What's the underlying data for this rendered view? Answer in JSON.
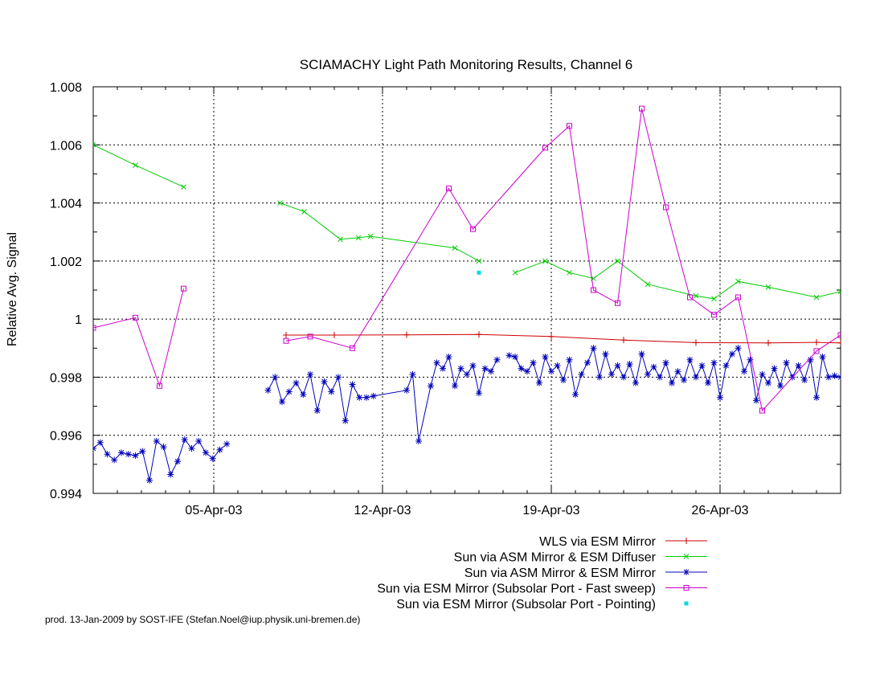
{
  "chart_data": {
    "type": "line",
    "title": "SCIAMACHY Light Path Monitoring Results, Channel 6",
    "xlabel": "",
    "ylabel": "Relative Avg. Signal",
    "xlim": [
      "2003-03-31",
      "2003-05-01"
    ],
    "ylim": [
      0.994,
      1.008
    ],
    "x_ticks": [
      {
        "date": "2003-04-05",
        "label": "05-Apr-03"
      },
      {
        "date": "2003-04-12",
        "label": "12-Apr-03"
      },
      {
        "date": "2003-04-19",
        "label": "19-Apr-03"
      },
      {
        "date": "2003-04-26",
        "label": "26-Apr-03"
      }
    ],
    "y_ticks": [
      {
        "value": 0.994,
        "label": "0.994"
      },
      {
        "value": 0.996,
        "label": "0.996"
      },
      {
        "value": 0.998,
        "label": "0.998"
      },
      {
        "value": 1.0,
        "label": "1"
      },
      {
        "value": 1.002,
        "label": "1.002"
      },
      {
        "value": 1.004,
        "label": "1.004"
      },
      {
        "value": 1.006,
        "label": "1.006"
      },
      {
        "value": 1.008,
        "label": "1.008"
      }
    ],
    "grid": true,
    "legend_position": "bottom-right",
    "series": [
      {
        "name": "WLS via ESM Mirror",
        "color": "#cc0000",
        "marker": "plus",
        "line": true,
        "points": [
          [
            "2003-04-08T00:00",
            0.99945
          ],
          [
            "2003-04-10T00:00",
            0.99945
          ],
          [
            "2003-04-13T00:00",
            0.99946
          ],
          [
            "2003-04-16T00:00",
            0.99947
          ],
          [
            "2003-04-19T00:00",
            0.9994
          ],
          [
            "2003-04-22T00:00",
            0.99928
          ],
          [
            "2003-04-25T00:00",
            0.99919
          ],
          [
            "2003-04-28T00:00",
            0.99918
          ],
          [
            "2003-04-30T00:00",
            0.9992
          ],
          [
            "2003-05-01T00:00",
            0.99918
          ]
        ]
      },
      {
        "name": "Sun via ASM Mirror & ESM Diffuser",
        "color": "#00cc00",
        "marker": "cross",
        "line": true,
        "segments": [
          [
            [
              "2003-03-31T00:00",
              1.006
            ],
            [
              "2003-04-01T18:00",
              1.0053
            ],
            [
              "2003-04-03T18:00",
              1.00455
            ]
          ],
          [
            [
              "2003-04-07T18:00",
              1.004
            ],
            [
              "2003-04-08T18:00",
              1.0037
            ],
            [
              "2003-04-10T06:00",
              1.00275
            ],
            [
              "2003-04-11T00:00",
              1.0028
            ],
            [
              "2003-04-11T12:00",
              1.00285
            ],
            [
              "2003-04-15T00:00",
              1.00245
            ],
            [
              "2003-04-16T00:00",
              1.002
            ]
          ],
          [
            [
              "2003-04-17T12:00",
              1.0016
            ],
            [
              "2003-04-18T18:00",
              1.002
            ],
            [
              "2003-04-19T18:00",
              1.0016
            ],
            [
              "2003-04-20T18:00",
              1.0014
            ],
            [
              "2003-04-21T18:00",
              1.002
            ],
            [
              "2003-04-23T00:00",
              1.0012
            ],
            [
              "2003-04-25T00:00",
              1.0008
            ],
            [
              "2003-04-25T18:00",
              1.0007
            ],
            [
              "2003-04-26T18:00",
              1.0013
            ],
            [
              "2003-04-28T00:00",
              1.0011
            ],
            [
              "2003-04-30T00:00",
              1.00075
            ],
            [
              "2003-05-01T00:00",
              1.00095
            ]
          ]
        ]
      },
      {
        "name": "Sun via ASM Mirror & ESM Mirror",
        "color": "#0000bb",
        "marker": "star",
        "line": true,
        "segments": [
          [
            [
              "2003-03-31T00:00",
              0.99555
            ],
            [
              "2003-03-31T07:00",
              0.99575
            ],
            [
              "2003-03-31T14:00",
              0.99535
            ],
            [
              "2003-03-31T21:00",
              0.99515
            ],
            [
              "2003-04-01T04:00",
              0.9954
            ],
            [
              "2003-04-01T11:00",
              0.99535
            ],
            [
              "2003-04-01T18:00",
              0.9953
            ],
            [
              "2003-04-02T01:00",
              0.99545
            ],
            [
              "2003-04-02T08:00",
              0.99445
            ],
            [
              "2003-04-02T15:00",
              0.9958
            ],
            [
              "2003-04-02T22:00",
              0.9956
            ],
            [
              "2003-04-03T05:00",
              0.99465
            ],
            [
              "2003-04-03T12:00",
              0.9951
            ],
            [
              "2003-04-03T19:00",
              0.99585
            ],
            [
              "2003-04-04T02:00",
              0.99555
            ],
            [
              "2003-04-04T09:00",
              0.9958
            ],
            [
              "2003-04-04T16:00",
              0.9954
            ],
            [
              "2003-04-04T23:00",
              0.9952
            ],
            [
              "2003-04-05T06:00",
              0.9955
            ],
            [
              "2003-04-05T13:00",
              0.9957
            ]
          ],
          [
            [
              "2003-04-07T06:00",
              0.99755
            ],
            [
              "2003-04-07T13:00",
              0.998
            ],
            [
              "2003-04-07T20:00",
              0.99715
            ],
            [
              "2003-04-08T03:00",
              0.9975
            ],
            [
              "2003-04-08T10:00",
              0.9978
            ],
            [
              "2003-04-08T17:00",
              0.9974
            ],
            [
              "2003-04-09T00:00",
              0.9981
            ],
            [
              "2003-04-09T07:00",
              0.99685
            ],
            [
              "2003-04-09T14:00",
              0.99785
            ],
            [
              "2003-04-09T21:00",
              0.9975
            ],
            [
              "2003-04-10T04:00",
              0.998
            ],
            [
              "2003-04-10T11:00",
              0.9965
            ],
            [
              "2003-04-10T18:00",
              0.99775
            ],
            [
              "2003-04-11T01:00",
              0.9973
            ],
            [
              "2003-04-11T08:00",
              0.9973
            ],
            [
              "2003-04-11T15:00",
              0.99735
            ],
            [
              "2003-04-13T00:00",
              0.99755
            ],
            [
              "2003-04-13T06:00",
              0.9981
            ],
            [
              "2003-04-13T12:00",
              0.9958
            ],
            [
              "2003-04-14T00:00",
              0.9977
            ],
            [
              "2003-04-14T06:00",
              0.9985
            ],
            [
              "2003-04-14T12:00",
              0.9983
            ],
            [
              "2003-04-14T18:00",
              0.9987
            ],
            [
              "2003-04-15T00:00",
              0.9977
            ],
            [
              "2003-04-15T06:00",
              0.9983
            ],
            [
              "2003-04-15T12:00",
              0.9981
            ],
            [
              "2003-04-15T18:00",
              0.9984
            ],
            [
              "2003-04-16T00:00",
              0.99745
            ],
            [
              "2003-04-16T06:00",
              0.9983
            ],
            [
              "2003-04-16T12:00",
              0.9982
            ],
            [
              "2003-04-16T18:00",
              0.9986
            ]
          ],
          [
            [
              "2003-04-17T06:00",
              0.99875
            ],
            [
              "2003-04-17T12:00",
              0.9987
            ],
            [
              "2003-04-17T18:00",
              0.9983
            ],
            [
              "2003-04-18T00:00",
              0.9982
            ],
            [
              "2003-04-18T06:00",
              0.9985
            ],
            [
              "2003-04-18T12:00",
              0.9978
            ],
            [
              "2003-04-18T18:00",
              0.9987
            ],
            [
              "2003-04-19T00:00",
              0.9982
            ],
            [
              "2003-04-19T06:00",
              0.9984
            ],
            [
              "2003-04-19T12:00",
              0.9979
            ],
            [
              "2003-04-19T18:00",
              0.9986
            ],
            [
              "2003-04-20T00:00",
              0.9974
            ],
            [
              "2003-04-20T06:00",
              0.9981
            ],
            [
              "2003-04-20T12:00",
              0.9985
            ],
            [
              "2003-04-20T18:00",
              0.999
            ],
            [
              "2003-04-21T00:00",
              0.998
            ],
            [
              "2003-04-21T06:00",
              0.9988
            ],
            [
              "2003-04-21T12:00",
              0.9981
            ],
            [
              "2003-04-21T18:00",
              0.9984
            ],
            [
              "2003-04-22T00:00",
              0.998
            ],
            [
              "2003-04-22T06:00",
              0.99845
            ],
            [
              "2003-04-22T12:00",
              0.9978
            ],
            [
              "2003-04-22T18:00",
              0.9988
            ],
            [
              "2003-04-23T00:00",
              0.9981
            ],
            [
              "2003-04-23T06:00",
              0.99835
            ],
            [
              "2003-04-23T12:00",
              0.998
            ],
            [
              "2003-04-23T18:00",
              0.9985
            ],
            [
              "2003-04-24T00:00",
              0.9978
            ],
            [
              "2003-04-24T06:00",
              0.9982
            ],
            [
              "2003-04-24T12:00",
              0.9979
            ],
            [
              "2003-04-24T18:00",
              0.9986
            ],
            [
              "2003-04-25T00:00",
              0.998
            ],
            [
              "2003-04-25T06:00",
              0.9984
            ],
            [
              "2003-04-25T12:00",
              0.9978
            ],
            [
              "2003-04-25T18:00",
              0.9985
            ],
            [
              "2003-04-26T00:00",
              0.9973
            ],
            [
              "2003-04-26T06:00",
              0.9984
            ],
            [
              "2003-04-26T12:00",
              0.9988
            ],
            [
              "2003-04-26T18:00",
              0.999
            ],
            [
              "2003-04-27T00:00",
              0.9982
            ],
            [
              "2003-04-27T06:00",
              0.9986
            ],
            [
              "2003-04-27T12:00",
              0.9972
            ],
            [
              "2003-04-27T18:00",
              0.9981
            ],
            [
              "2003-04-28T00:00",
              0.9978
            ],
            [
              "2003-04-28T06:00",
              0.9983
            ],
            [
              "2003-04-28T12:00",
              0.9977
            ],
            [
              "2003-04-28T18:00",
              0.9985
            ],
            [
              "2003-04-29T00:00",
              0.998
            ],
            [
              "2003-04-29T06:00",
              0.9984
            ],
            [
              "2003-04-29T12:00",
              0.9979
            ],
            [
              "2003-04-29T18:00",
              0.9986
            ],
            [
              "2003-04-30T00:00",
              0.9973
            ],
            [
              "2003-04-30T06:00",
              0.9987
            ],
            [
              "2003-04-30T12:00",
              0.998
            ],
            [
              "2003-04-30T18:00",
              0.99805
            ],
            [
              "2003-05-01T00:00",
              0.998
            ]
          ]
        ]
      },
      {
        "name": "Sun via ESM Mirror (Subsolar Port - Fast sweep)",
        "color": "#cc00cc",
        "marker": "square",
        "line": true,
        "segments": [
          [
            [
              "2003-03-31T00:00",
              0.9997
            ],
            [
              "2003-04-01T18:00",
              1.00005
            ],
            [
              "2003-04-02T18:00",
              0.9977
            ],
            [
              "2003-04-03T18:00",
              1.00105
            ]
          ],
          [
            [
              "2003-04-08T00:00",
              0.99925
            ],
            [
              "2003-04-09T00:00",
              0.9994
            ],
            [
              "2003-04-10T18:00",
              0.999
            ],
            [
              "2003-04-14T18:00",
              1.0045
            ],
            [
              "2003-04-15T18:00",
              1.0031
            ],
            [
              "2003-04-18T18:00",
              1.0059
            ],
            [
              "2003-04-19T18:00",
              1.00665
            ],
            [
              "2003-04-20T18:00",
              1.001
            ],
            [
              "2003-04-21T18:00",
              1.00055
            ],
            [
              "2003-04-22T18:00",
              1.00725
            ],
            [
              "2003-04-23T18:00",
              1.00385
            ],
            [
              "2003-04-24T18:00",
              1.00075
            ],
            [
              "2003-04-25T18:00",
              1.00015
            ],
            [
              "2003-04-26T18:00",
              1.00075
            ],
            [
              "2003-04-27T18:00",
              0.99685
            ],
            [
              "2003-04-30T00:00",
              0.9989
            ],
            [
              "2003-05-01T00:00",
              0.99945
            ]
          ]
        ]
      },
      {
        "name": "Sun via ESM Mirror (Subsolar Port - Pointing)",
        "color": "#00dddd",
        "marker": "dot",
        "line": false,
        "points": [
          [
            "2003-04-16T00:00",
            1.0016
          ]
        ]
      }
    ],
    "footer": "prod. 13-Jan-2009 by SOST-IFE (Stefan.Noel@iup.physik.uni-bremen.de)"
  }
}
